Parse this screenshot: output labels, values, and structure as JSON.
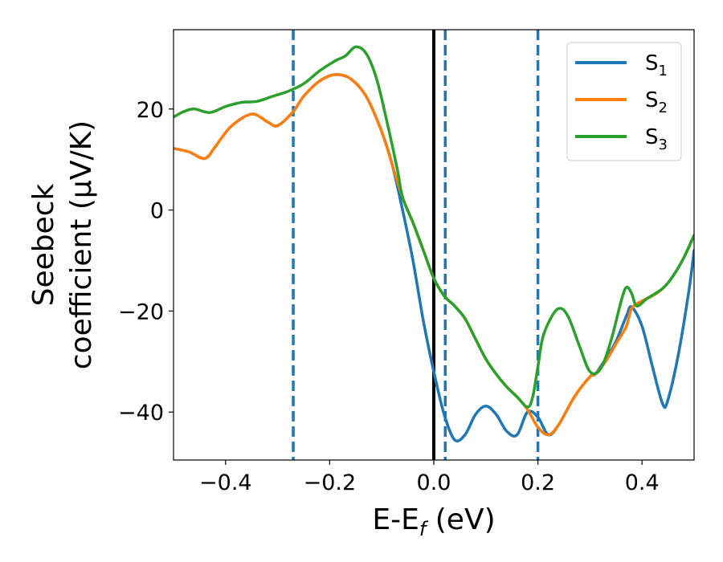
{
  "chart_data": {
    "type": "line",
    "xlabel": "E-E",
    "xlabel_sub": "f",
    "xlabel_unit": " (eV)",
    "ylabel_line1": "Seebeck",
    "ylabel_line2": "coefficient  (μV/K)",
    "xlim": [
      -0.5,
      0.5
    ],
    "ylim": [
      -49.5,
      35.7
    ],
    "xticks": [
      -0.4,
      -0.2,
      0.0,
      0.2,
      0.4
    ],
    "xtick_labels": [
      "−0.4",
      "−0.2",
      "0.0",
      "0.2",
      "0.4"
    ],
    "yticks": [
      -40,
      -20,
      0,
      20
    ],
    "ytick_labels": [
      "−40",
      "−20",
      "0",
      "20"
    ],
    "legend_position": "top-right",
    "grid": false,
    "vlines": [
      {
        "x": -0.27,
        "style": "dashed",
        "color": "#1f77b4"
      },
      {
        "x": 0.0,
        "style": "solid",
        "color": "#000000"
      },
      {
        "x": 0.022,
        "style": "dashed",
        "color": "#1f77b4"
      },
      {
        "x": 0.2,
        "style": "dashed",
        "color": "#1f77b4"
      }
    ],
    "series": [
      {
        "name": "S",
        "sub": "1",
        "color": "#1f77b4",
        "points": [
          [
            -0.5,
            12.2
          ],
          [
            -0.47,
            11.5
          ],
          [
            -0.44,
            10.2
          ],
          [
            -0.42,
            12.5
          ],
          [
            -0.39,
            16.5
          ],
          [
            -0.35,
            19.0
          ],
          [
            -0.32,
            17.5
          ],
          [
            -0.3,
            16.7
          ],
          [
            -0.27,
            19.5
          ],
          [
            -0.25,
            22.5
          ],
          [
            -0.22,
            25.5
          ],
          [
            -0.19,
            26.8
          ],
          [
            -0.16,
            26.0
          ],
          [
            -0.13,
            22.5
          ],
          [
            -0.1,
            15.5
          ],
          [
            -0.08,
            9.0
          ],
          [
            -0.06,
            0.0
          ],
          [
            -0.04,
            -10.0
          ],
          [
            -0.02,
            -22.0
          ],
          [
            0.0,
            -32.0
          ],
          [
            0.02,
            -40.5
          ],
          [
            0.04,
            -45.5
          ],
          [
            0.06,
            -44.5
          ],
          [
            0.08,
            -40.5
          ],
          [
            0.1,
            -38.8
          ],
          [
            0.12,
            -40.5
          ],
          [
            0.14,
            -43.8
          ],
          [
            0.16,
            -44.5
          ],
          [
            0.18,
            -40.0
          ],
          [
            0.2,
            -41.0
          ],
          [
            0.22,
            -44.5
          ],
          [
            0.24,
            -42.5
          ],
          [
            0.27,
            -37.0
          ],
          [
            0.3,
            -33.0
          ],
          [
            0.31,
            -32.5
          ],
          [
            0.33,
            -29.5
          ],
          [
            0.35,
            -26.0
          ],
          [
            0.37,
            -21.0
          ],
          [
            0.38,
            -19.2
          ],
          [
            0.4,
            -23.0
          ],
          [
            0.42,
            -31.0
          ],
          [
            0.44,
            -38.5
          ],
          [
            0.45,
            -37.5
          ],
          [
            0.47,
            -28.5
          ],
          [
            0.49,
            -16.0
          ],
          [
            0.5,
            -8.0
          ]
        ]
      },
      {
        "name": "S",
        "sub": "2",
        "color": "#ff7f0e",
        "points": [
          [
            -0.5,
            12.2
          ],
          [
            -0.47,
            11.5
          ],
          [
            -0.44,
            10.2
          ],
          [
            -0.42,
            12.5
          ],
          [
            -0.39,
            16.5
          ],
          [
            -0.35,
            19.0
          ],
          [
            -0.32,
            17.5
          ],
          [
            -0.3,
            16.7
          ],
          [
            -0.27,
            19.5
          ],
          [
            -0.25,
            22.5
          ],
          [
            -0.22,
            25.5
          ],
          [
            -0.19,
            26.8
          ],
          [
            -0.16,
            26.0
          ],
          [
            -0.13,
            22.5
          ],
          [
            -0.1,
            15.5
          ],
          [
            -0.08,
            9.0
          ],
          [
            -0.06,
            2.5
          ],
          [
            -0.04,
            -2.5
          ],
          [
            -0.02,
            -8.0
          ],
          [
            0.0,
            -13.5
          ],
          [
            0.02,
            -17.0
          ],
          [
            0.04,
            -19.0
          ],
          [
            0.06,
            -21.5
          ],
          [
            0.08,
            -25.5
          ],
          [
            0.1,
            -29.5
          ],
          [
            0.12,
            -32.5
          ],
          [
            0.14,
            -35.0
          ],
          [
            0.16,
            -37.0
          ],
          [
            0.18,
            -39.5
          ],
          [
            0.2,
            -43.0
          ],
          [
            0.22,
            -44.5
          ],
          [
            0.24,
            -42.5
          ],
          [
            0.27,
            -37.0
          ],
          [
            0.3,
            -33.0
          ],
          [
            0.31,
            -32.5
          ],
          [
            0.33,
            -30.0
          ],
          [
            0.35,
            -26.5
          ],
          [
            0.37,
            -23.0
          ],
          [
            0.38,
            -19.5
          ],
          [
            0.4,
            -18.0
          ],
          [
            0.42,
            -17.0
          ],
          [
            0.44,
            -15.5
          ],
          [
            0.46,
            -13.0
          ],
          [
            0.48,
            -9.5
          ],
          [
            0.5,
            -5.0
          ]
        ]
      },
      {
        "name": "S",
        "sub": "3",
        "color": "#2ca02c",
        "points": [
          [
            -0.5,
            18.4
          ],
          [
            -0.48,
            19.5
          ],
          [
            -0.46,
            20.0
          ],
          [
            -0.43,
            19.3
          ],
          [
            -0.4,
            20.5
          ],
          [
            -0.37,
            21.3
          ],
          [
            -0.34,
            21.5
          ],
          [
            -0.31,
            22.5
          ],
          [
            -0.28,
            23.5
          ],
          [
            -0.25,
            25.0
          ],
          [
            -0.22,
            27.5
          ],
          [
            -0.19,
            29.5
          ],
          [
            -0.17,
            30.5
          ],
          [
            -0.15,
            32.3
          ],
          [
            -0.13,
            31.0
          ],
          [
            -0.11,
            26.0
          ],
          [
            -0.09,
            17.5
          ],
          [
            -0.07,
            8.0
          ],
          [
            -0.06,
            2.5
          ],
          [
            -0.04,
            -2.5
          ],
          [
            -0.02,
            -8.0
          ],
          [
            0.0,
            -13.5
          ],
          [
            0.02,
            -17.0
          ],
          [
            0.04,
            -19.0
          ],
          [
            0.06,
            -21.5
          ],
          [
            0.08,
            -25.5
          ],
          [
            0.1,
            -29.5
          ],
          [
            0.12,
            -32.5
          ],
          [
            0.14,
            -35.0
          ],
          [
            0.16,
            -37.0
          ],
          [
            0.18,
            -39.0
          ],
          [
            0.19,
            -37.0
          ],
          [
            0.2,
            -31.0
          ],
          [
            0.21,
            -25.0
          ],
          [
            0.23,
            -20.5
          ],
          [
            0.245,
            -19.5
          ],
          [
            0.26,
            -21.5
          ],
          [
            0.28,
            -27.0
          ],
          [
            0.3,
            -32.0
          ],
          [
            0.32,
            -31.5
          ],
          [
            0.34,
            -26.0
          ],
          [
            0.36,
            -18.0
          ],
          [
            0.37,
            -15.3
          ],
          [
            0.38,
            -16.5
          ],
          [
            0.39,
            -19.0
          ],
          [
            0.41,
            -17.5
          ],
          [
            0.44,
            -15.5
          ],
          [
            0.46,
            -13.0
          ],
          [
            0.48,
            -9.5
          ],
          [
            0.5,
            -5.0
          ]
        ]
      }
    ]
  }
}
